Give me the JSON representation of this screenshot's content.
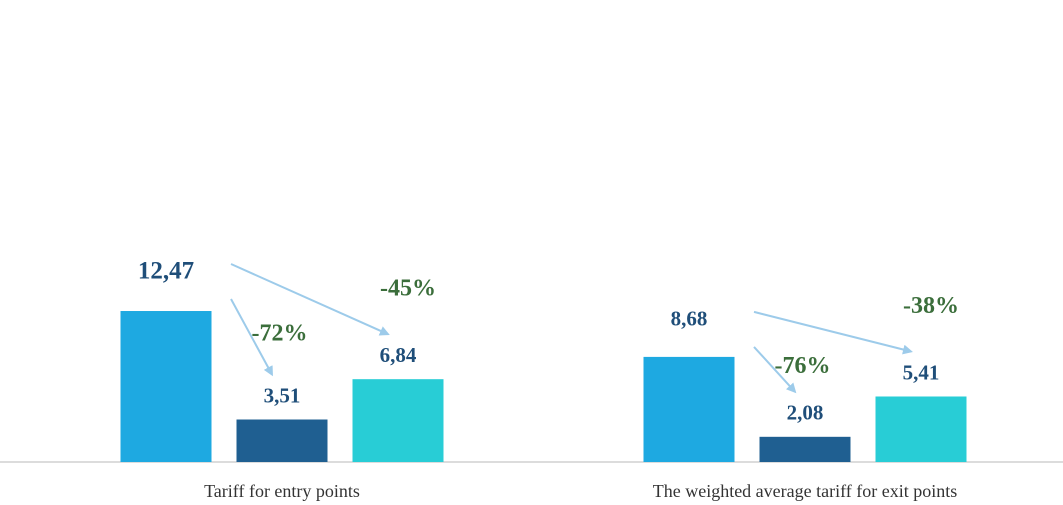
{
  "chart_data": {
    "type": "bar",
    "categories": [
      "Tariff for entry points",
      "The weighted average tariff for exit points"
    ],
    "series": [
      {
        "color": "#1ea9e1",
        "values": [
          12.47,
          8.68
        ],
        "value_labels": [
          "12,47",
          "8,68"
        ]
      },
      {
        "color": "#1f5f91",
        "values": [
          3.51,
          2.08
        ],
        "value_labels": [
          "3,51",
          "2,08"
        ],
        "change_labels": [
          "-72%",
          "-76%"
        ]
      },
      {
        "color": "#28cdd6",
        "values": [
          6.84,
          5.41
        ],
        "value_labels": [
          "6,84",
          "5,41"
        ],
        "change_labels": [
          "-45%",
          "-38%"
        ]
      }
    ],
    "ylim": [
      0,
      37
    ]
  }
}
